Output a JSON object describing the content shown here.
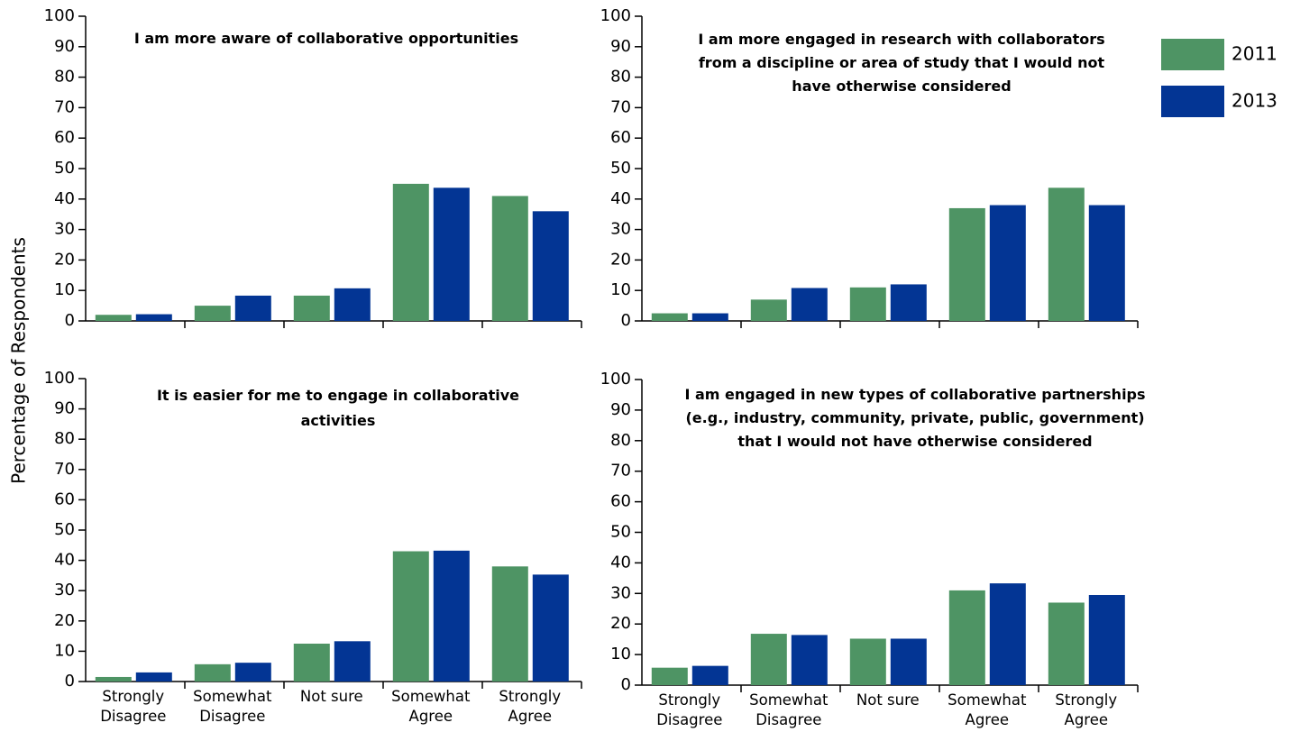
{
  "chart_data": [
    {
      "type": "bar",
      "title": "I am more aware of collaborative opportunities",
      "ylabel": "Percentage of Respondents",
      "categories": [
        null,
        null,
        null,
        null,
        null
      ],
      "series": [
        {
          "color": "#4e9464",
          "values": [
            2,
            5,
            8.3,
            45,
            41
          ]
        },
        {
          "color": "#033594",
          "values": [
            2.2,
            8.3,
            10.7,
            43.7,
            36
          ]
        }
      ],
      "ylim": [
        0,
        100
      ],
      "yticks": [
        0,
        10,
        20,
        30,
        40,
        50,
        60,
        70,
        80,
        90,
        100
      ]
    },
    {
      "type": "bar",
      "title": "I am more engaged in research with collaborators\nfrom a discipline or area of study that I would not\nhave otherwise considered",
      "categories": [
        null,
        null,
        null,
        null,
        null
      ],
      "series": [
        {
          "name": "2011",
          "color": "#4e9464",
          "values": [
            2.5,
            7,
            11,
            37,
            43.7
          ]
        },
        {
          "name": "2013",
          "color": "#033594",
          "values": [
            2.5,
            10.8,
            12,
            38,
            38
          ]
        }
      ],
      "ylim": [
        0,
        100
      ],
      "yticks": [
        0,
        10,
        20,
        30,
        40,
        50,
        60,
        70,
        80,
        90,
        100
      ]
    },
    {
      "type": "bar",
      "title": "It is easier for me to engage in collaborative\nactivities",
      "categories": [
        "Strongly\nDisagree",
        "Somewhat\nDisagree",
        "Not sure",
        "Somewhat\nAgree",
        "Strongly\nAgree"
      ],
      "series": [
        {
          "color": "#4e9464",
          "values": [
            1.5,
            5.7,
            12.5,
            43,
            38
          ]
        },
        {
          "color": "#033594",
          "values": [
            3,
            6.2,
            13.3,
            43.2,
            35.3
          ]
        }
      ],
      "ylim": [
        0,
        100
      ],
      "yticks": [
        0,
        10,
        20,
        30,
        40,
        50,
        60,
        70,
        80,
        90,
        100
      ]
    },
    {
      "type": "bar",
      "title": "I am engaged in new types of collaborative partnerships\n(e.g., industry, community, private, public, government)\nthat I would not have otherwise considered",
      "categories": [
        "Strongly\nDisagree",
        "Somewhat\nDisagree",
        "Not sure",
        "Somewhat\nAgree",
        "Strongly\nAgree"
      ],
      "series": [
        {
          "color": "#4e9464",
          "values": [
            5.7,
            16.8,
            15.2,
            31,
            27
          ]
        },
        {
          "color": "#033594",
          "values": [
            6.3,
            16.4,
            15.2,
            33.3,
            29.5
          ]
        }
      ],
      "ylim": [
        0,
        100
      ],
      "yticks": [
        0,
        10,
        20,
        30,
        40,
        50,
        60,
        70,
        80,
        90,
        100
      ]
    }
  ]
}
